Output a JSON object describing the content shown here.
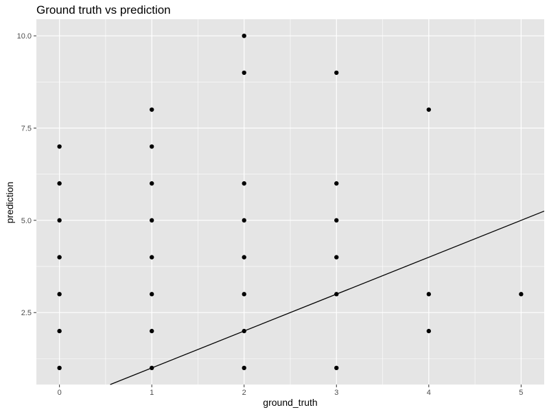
{
  "chart_data": {
    "type": "scatter",
    "title": "Ground truth vs prediction",
    "xlabel": "ground_truth",
    "ylabel": "prediction",
    "xlim": [
      -0.25,
      5.25
    ],
    "ylim": [
      0.55,
      10.45
    ],
    "x_ticks": [
      0,
      1,
      2,
      3,
      4,
      5
    ],
    "x_tick_labels": [
      "0",
      "1",
      "2",
      "3",
      "4",
      "5"
    ],
    "x_minor_ticks": [
      0.5,
      1.5,
      2.5,
      3.5,
      4.5
    ],
    "y_ticks": [
      2.5,
      5,
      7.5,
      10
    ],
    "y_tick_labels": [
      "2.5",
      "5.0",
      "7.5",
      "10.0"
    ],
    "y_minor_ticks": [
      1.25,
      3.75,
      6.25,
      8.75
    ],
    "grid": true,
    "reference_line": {
      "intercept": 0,
      "slope": 1
    },
    "colors": {
      "panel_background": "#e5e5e5",
      "grid": "#ffffff",
      "points": "#000000",
      "line": "#000000"
    },
    "series": [
      {
        "x": [
          0,
          0,
          0,
          0,
          0,
          0,
          0,
          1,
          1,
          1,
          1,
          1,
          1,
          1,
          1,
          2,
          2,
          2,
          2,
          2,
          2,
          2,
          2,
          3,
          3,
          3,
          3,
          3,
          3,
          4,
          4,
          4,
          5
        ],
        "y": [
          1,
          2,
          3,
          4,
          5,
          6,
          7,
          1,
          2,
          3,
          4,
          5,
          6,
          7,
          8,
          1,
          2,
          3,
          4,
          5,
          6,
          9,
          10,
          1,
          3,
          4,
          5,
          6,
          9,
          2,
          3,
          8,
          3
        ]
      }
    ]
  }
}
